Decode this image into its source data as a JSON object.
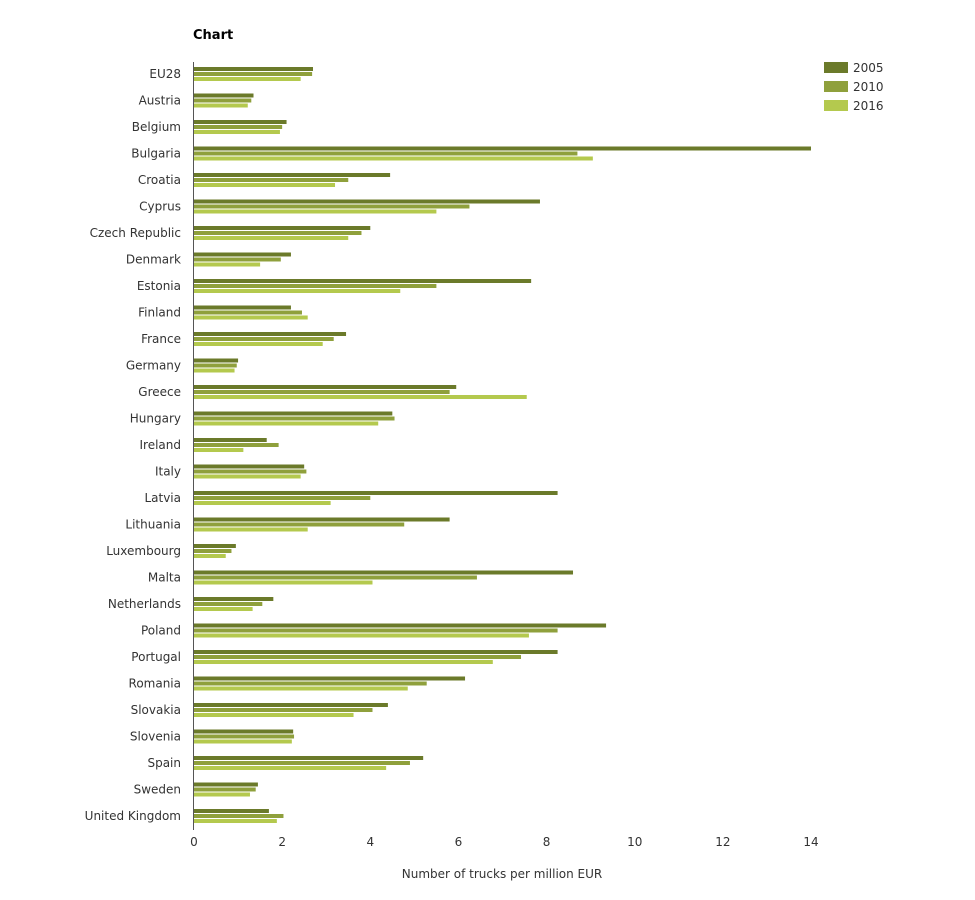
{
  "chart_data": {
    "type": "bar",
    "orientation": "horizontal",
    "title": "Chart",
    "xlabel": "Number of trucks per million EUR",
    "ylabel": "",
    "xlim": [
      0,
      14
    ],
    "xticks": [
      0,
      2,
      4,
      6,
      8,
      10,
      12,
      14
    ],
    "grid": false,
    "legend_position": "top-right",
    "categories": [
      "EU28",
      "Austria",
      "Belgium",
      "Bulgaria",
      "Croatia",
      "Cyprus",
      "Czech Republic",
      "Denmark",
      "Estonia",
      "Finland",
      "France",
      "Germany",
      "Greece",
      "Hungary",
      "Ireland",
      "Italy",
      "Latvia",
      "Lithuania",
      "Luxembourg",
      "Malta",
      "Netherlands",
      "Poland",
      "Portugal",
      "Romania",
      "Slovakia",
      "Slovenia",
      "Spain",
      "Sweden",
      "United Kingdom"
    ],
    "series": [
      {
        "name": "2005",
        "color": "#6b7a2a",
        "values": [
          2.7,
          1.35,
          2.1,
          14.0,
          4.45,
          7.85,
          4.0,
          2.2,
          7.65,
          2.2,
          3.45,
          1.0,
          5.95,
          4.5,
          1.65,
          2.5,
          8.25,
          5.8,
          0.95,
          8.6,
          1.8,
          9.35,
          8.25,
          6.15,
          4.4,
          2.25,
          5.2,
          1.45,
          1.7
        ]
      },
      {
        "name": "2010",
        "color": "#8fa03c",
        "values": [
          2.68,
          1.3,
          2.0,
          8.7,
          3.5,
          6.25,
          3.8,
          1.97,
          5.5,
          2.45,
          3.17,
          0.97,
          5.8,
          4.55,
          1.92,
          2.55,
          4.0,
          4.77,
          0.85,
          6.42,
          1.55,
          8.25,
          7.42,
          5.28,
          4.05,
          2.27,
          4.9,
          1.4,
          2.03
        ]
      },
      {
        "name": "2016",
        "color": "#b4c94e",
        "values": [
          2.42,
          1.22,
          1.95,
          9.05,
          3.2,
          5.5,
          3.5,
          1.5,
          4.68,
          2.58,
          2.92,
          0.92,
          7.55,
          4.18,
          1.12,
          2.42,
          3.1,
          2.58,
          0.72,
          4.05,
          1.33,
          7.6,
          6.78,
          4.85,
          3.62,
          2.22,
          4.36,
          1.27,
          1.88
        ]
      }
    ]
  }
}
